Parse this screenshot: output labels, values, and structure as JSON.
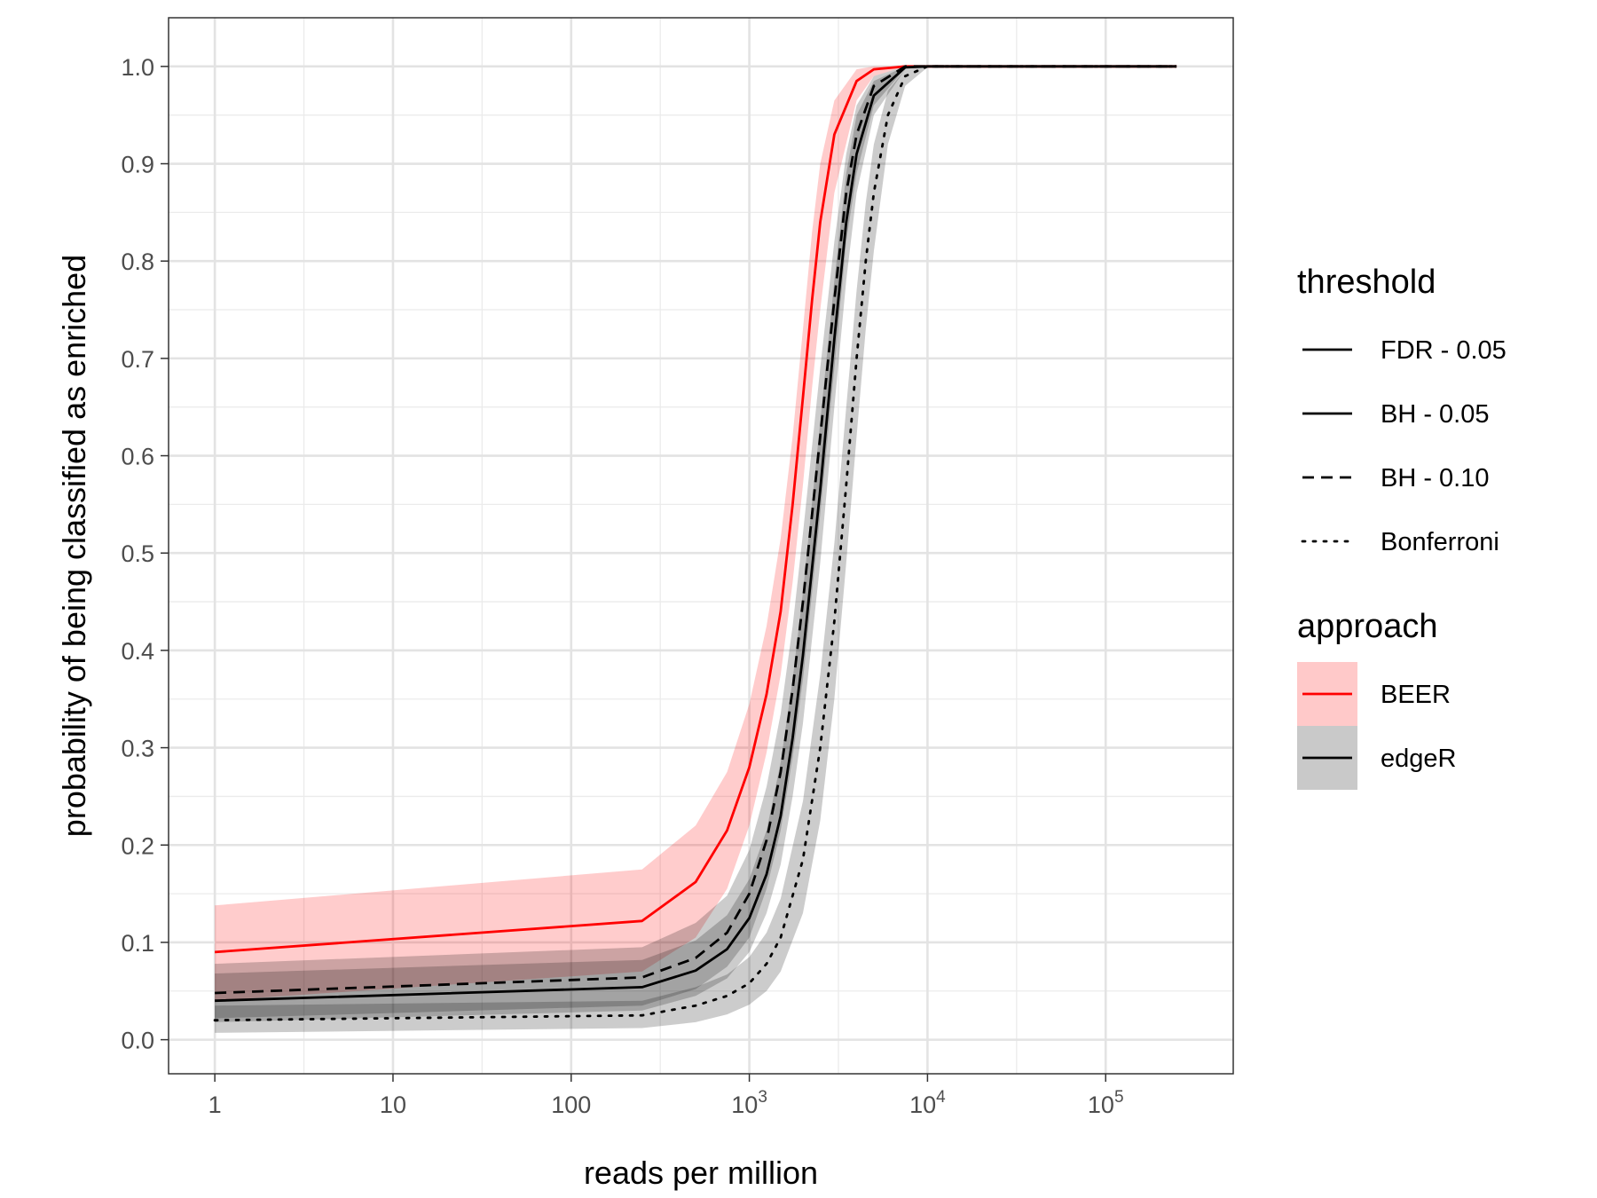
{
  "chart_data": {
    "type": "line",
    "xlabel": "reads per million",
    "ylabel": "probability of being classified as enriched",
    "x_scale": "log10",
    "xlim": [
      0.55,
      520000
    ],
    "ylim": [
      -0.035,
      1.05
    ],
    "x_ticks": [
      {
        "value": 1,
        "label": "1"
      },
      {
        "value": 10,
        "label": "10"
      },
      {
        "value": 100,
        "label": "100"
      },
      {
        "value": 1000,
        "label": "10",
        "sup": "3"
      },
      {
        "value": 10000,
        "label": "10",
        "sup": "4"
      },
      {
        "value": 100000,
        "label": "10",
        "sup": "5"
      }
    ],
    "y_ticks": [
      {
        "value": 0.0,
        "label": "0.0"
      },
      {
        "value": 0.1,
        "label": "0.1"
      },
      {
        "value": 0.2,
        "label": "0.2"
      },
      {
        "value": 0.3,
        "label": "0.3"
      },
      {
        "value": 0.4,
        "label": "0.4"
      },
      {
        "value": 0.5,
        "label": "0.5"
      },
      {
        "value": 0.6,
        "label": "0.6"
      },
      {
        "value": 0.7,
        "label": "0.7"
      },
      {
        "value": 0.8,
        "label": "0.8"
      },
      {
        "value": 0.9,
        "label": "0.9"
      },
      {
        "value": 1.0,
        "label": "1.0"
      }
    ],
    "grid": true,
    "legend_position": "right",
    "legends": [
      {
        "title": "threshold",
        "entries": [
          {
            "label": "FDR - 0.05",
            "linetype": "solid"
          },
          {
            "label": "BH - 0.05",
            "linetype": "solid"
          },
          {
            "label": "BH - 0.10",
            "linetype": "dashed"
          },
          {
            "label": "Bonferroni",
            "linetype": "dotted"
          }
        ]
      },
      {
        "title": "approach",
        "entries": [
          {
            "label": "BEER",
            "color": "#ff0000",
            "fill": "#ffc9c9"
          },
          {
            "label": "edgeR",
            "color": "#000000",
            "fill": "#c9c9c9"
          }
        ]
      }
    ],
    "series": [
      {
        "approach": "BEER",
        "threshold": "FDR - 0.05",
        "linetype": "solid",
        "color": "#ff0000",
        "fill": "#ff0000",
        "x": [
          1,
          250,
          500,
          750,
          1000,
          1250,
          1500,
          1750,
          2000,
          2250,
          2500,
          3000,
          4000,
          5000,
          7500,
          10000,
          250000
        ],
        "y": [
          0.09,
          0.122,
          0.162,
          0.215,
          0.28,
          0.355,
          0.44,
          0.55,
          0.66,
          0.76,
          0.84,
          0.93,
          0.985,
          0.997,
          1.0,
          1.0,
          1.0
        ],
        "lower": [
          0.04,
          0.07,
          0.105,
          0.155,
          0.22,
          0.295,
          0.375,
          0.47,
          0.57,
          0.67,
          0.75,
          0.87,
          0.965,
          0.99,
          1.0,
          1.0,
          1.0
        ],
        "upper": [
          0.138,
          0.175,
          0.22,
          0.275,
          0.345,
          0.425,
          0.515,
          0.62,
          0.73,
          0.83,
          0.9,
          0.965,
          0.997,
          1.0,
          1.0,
          1.0,
          1.0
        ]
      },
      {
        "approach": "edgeR",
        "threshold": "BH - 0.10",
        "linetype": "dashed",
        "color": "#000000",
        "fill": "#000000",
        "x": [
          1,
          250,
          500,
          750,
          1000,
          1250,
          1500,
          1750,
          2000,
          2500,
          3000,
          3500,
          4000,
          5000,
          7500,
          10000,
          250000
        ],
        "y": [
          0.048,
          0.064,
          0.084,
          0.11,
          0.15,
          0.205,
          0.275,
          0.36,
          0.45,
          0.62,
          0.76,
          0.87,
          0.93,
          0.98,
          1.0,
          1.0,
          1.0
        ],
        "lower": [
          0.022,
          0.035,
          0.052,
          0.075,
          0.105,
          0.155,
          0.215,
          0.29,
          0.37,
          0.54,
          0.69,
          0.82,
          0.89,
          0.96,
          0.998,
          1.0,
          1.0
        ],
        "upper": [
          0.078,
          0.095,
          0.12,
          0.148,
          0.195,
          0.26,
          0.335,
          0.425,
          0.52,
          0.69,
          0.82,
          0.91,
          0.96,
          0.99,
          1.0,
          1.0,
          1.0
        ]
      },
      {
        "approach": "edgeR",
        "threshold": "BH - 0.05",
        "linetype": "solid",
        "color": "#000000",
        "fill": "#000000",
        "x": [
          1,
          250,
          500,
          750,
          1000,
          1250,
          1500,
          1750,
          2000,
          2500,
          3000,
          3500,
          4000,
          5000,
          7500,
          10000,
          250000
        ],
        "y": [
          0.04,
          0.054,
          0.071,
          0.093,
          0.125,
          0.17,
          0.23,
          0.31,
          0.395,
          0.565,
          0.72,
          0.84,
          0.91,
          0.97,
          0.999,
          1.0,
          1.0
        ],
        "lower": [
          0.018,
          0.03,
          0.045,
          0.063,
          0.09,
          0.13,
          0.18,
          0.25,
          0.325,
          0.49,
          0.65,
          0.78,
          0.87,
          0.95,
          0.997,
          1.0,
          1.0
        ],
        "upper": [
          0.068,
          0.082,
          0.102,
          0.128,
          0.165,
          0.215,
          0.285,
          0.37,
          0.46,
          0.635,
          0.78,
          0.89,
          0.95,
          0.985,
          1.0,
          1.0,
          1.0
        ]
      },
      {
        "approach": "edgeR",
        "threshold": "Bonferroni",
        "linetype": "dotted",
        "color": "#000000",
        "fill": "#000000",
        "x": [
          1,
          250,
          500,
          750,
          1000,
          1250,
          1500,
          2000,
          2500,
          3000,
          3500,
          4000,
          4500,
          5000,
          6000,
          7500,
          10000,
          250000
        ],
        "y": [
          0.02,
          0.025,
          0.035,
          0.045,
          0.058,
          0.078,
          0.105,
          0.185,
          0.3,
          0.43,
          0.57,
          0.7,
          0.8,
          0.87,
          0.95,
          0.99,
          1.0,
          1.0
        ],
        "lower": [
          0.007,
          0.012,
          0.018,
          0.026,
          0.036,
          0.05,
          0.07,
          0.13,
          0.225,
          0.35,
          0.49,
          0.62,
          0.73,
          0.81,
          0.92,
          0.98,
          0.999,
          1.0
        ],
        "upper": [
          0.035,
          0.04,
          0.054,
          0.067,
          0.085,
          0.11,
          0.145,
          0.245,
          0.375,
          0.51,
          0.65,
          0.77,
          0.86,
          0.92,
          0.975,
          0.997,
          1.0,
          1.0
        ]
      }
    ]
  }
}
